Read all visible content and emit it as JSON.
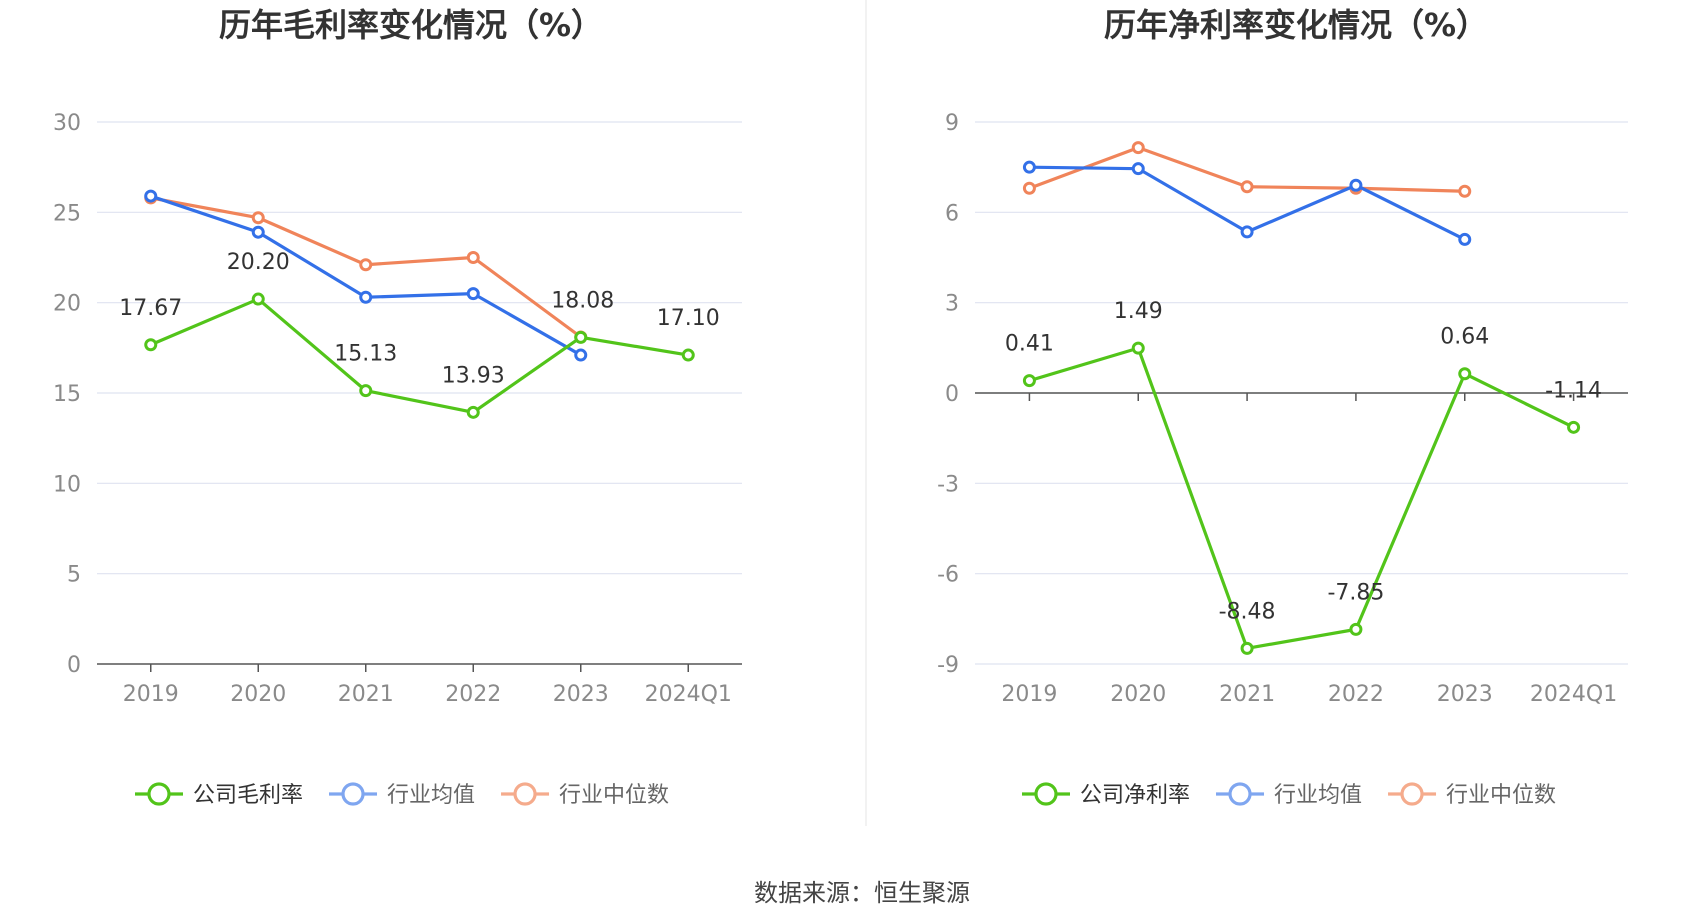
{
  "colors": {
    "company": "#52c41a",
    "avg": "#3370e8",
    "median": "#f0845a",
    "avg_legend": "#7fa6f0",
    "median_legend": "#f5ab8c",
    "grid": "#dfe3f0",
    "axis": "#555555"
  },
  "chart_data": [
    {
      "type": "line",
      "title": "历年毛利率变化情况（%）",
      "categories": [
        "2019",
        "2020",
        "2021",
        "2022",
        "2023",
        "2024Q1"
      ],
      "ylim": [
        0,
        30
      ],
      "yticks": [
        0,
        5,
        10,
        15,
        20,
        25,
        30
      ],
      "ytick_labels": [
        "0",
        "5",
        "10",
        "15",
        "20",
        "25",
        "30"
      ],
      "series": [
        {
          "key": "company",
          "name": "公司毛利率",
          "values": [
            17.67,
            20.2,
            15.13,
            13.93,
            18.08,
            17.1
          ],
          "labels": [
            "17.67",
            "20.20",
            "15.13",
            "13.93",
            "18.08",
            "17.10"
          ]
        },
        {
          "key": "avg",
          "name": "行业均值",
          "values": [
            25.9,
            23.9,
            20.3,
            20.5,
            17.1,
            null
          ]
        },
        {
          "key": "median",
          "name": "行业中位数",
          "values": [
            25.8,
            24.7,
            22.1,
            22.5,
            18.1,
            null
          ]
        }
      ]
    },
    {
      "type": "line",
      "title": "历年净利率变化情况（%）",
      "categories": [
        "2019",
        "2020",
        "2021",
        "2022",
        "2023",
        "2024Q1"
      ],
      "ylim": [
        -9,
        9
      ],
      "yticks": [
        -9,
        -6,
        -3,
        0,
        3,
        6,
        9
      ],
      "ytick_labels": [
        "-9",
        "-6",
        "-3",
        "0",
        "3",
        "6",
        "9"
      ],
      "series": [
        {
          "key": "company",
          "name": "公司净利率",
          "values": [
            0.41,
            1.49,
            -8.48,
            -7.85,
            0.64,
            -1.14
          ],
          "labels": [
            "0.41",
            "1.49",
            "-8.48",
            "-7.85",
            "0.64",
            "-1.14"
          ]
        },
        {
          "key": "avg",
          "name": "行业均值",
          "values": [
            7.5,
            7.45,
            5.35,
            6.9,
            5.1,
            null
          ]
        },
        {
          "key": "median",
          "name": "行业中位数",
          "values": [
            6.8,
            8.15,
            6.85,
            6.8,
            6.7,
            null
          ]
        }
      ]
    }
  ],
  "footer": {
    "source": "数据来源：恒生聚源"
  }
}
